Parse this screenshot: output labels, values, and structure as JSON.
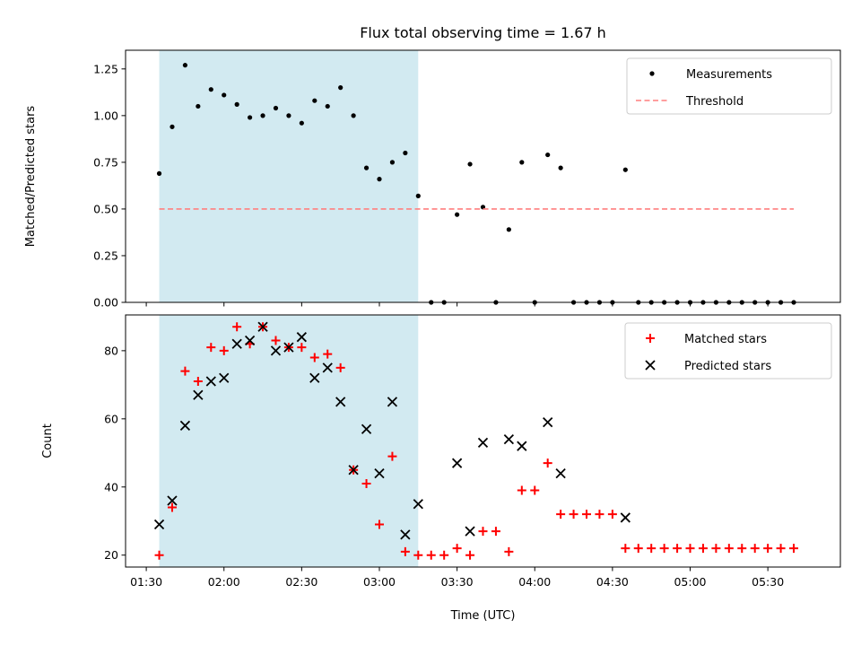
{
  "chart_data": [
    {
      "type": "scatter",
      "title": "Flux total observing time = 1.67 h",
      "xlabel": "",
      "ylabel": "Matched/Predicted stars",
      "x_axis": "time",
      "xlim": [
        "01:22",
        "05:58"
      ],
      "ylim": [
        0,
        1.35
      ],
      "yticks": [
        0.0,
        0.25,
        0.5,
        0.75,
        1.0,
        1.25
      ],
      "ytick_labels": [
        "0.00",
        "0.25",
        "0.50",
        "0.75",
        "1.00",
        "1.25"
      ],
      "grid": false,
      "legend": "top-right",
      "shaded_region": {
        "x": [
          "01:35",
          "03:15"
        ],
        "color": "#add8e6"
      },
      "series": [
        {
          "name": "Measurements",
          "marker": "dot",
          "color": "#000000",
          "points": [
            [
              "01:35",
              0.69
            ],
            [
              "01:40",
              0.94
            ],
            [
              "01:45",
              1.27
            ],
            [
              "01:50",
              1.05
            ],
            [
              "01:55",
              1.14
            ],
            [
              "02:00",
              1.11
            ],
            [
              "02:05",
              1.06
            ],
            [
              "02:10",
              0.99
            ],
            [
              "02:15",
              1.0
            ],
            [
              "02:20",
              1.04
            ],
            [
              "02:25",
              1.0
            ],
            [
              "02:30",
              0.96
            ],
            [
              "02:35",
              1.08
            ],
            [
              "02:40",
              1.05
            ],
            [
              "02:45",
              1.15
            ],
            [
              "02:50",
              1.0
            ],
            [
              "02:55",
              0.72
            ],
            [
              "03:00",
              0.66
            ],
            [
              "03:05",
              0.75
            ],
            [
              "03:10",
              0.8
            ],
            [
              "03:15",
              0.57
            ],
            [
              "03:20",
              0.0
            ],
            [
              "03:25",
              0.0
            ],
            [
              "03:30",
              0.47
            ],
            [
              "03:35",
              0.74
            ],
            [
              "03:40",
              0.51
            ],
            [
              "03:45",
              0.0
            ],
            [
              "03:50",
              0.39
            ],
            [
              "03:55",
              0.75
            ],
            [
              "04:00",
              0.0
            ],
            [
              "04:05",
              0.79
            ],
            [
              "04:10",
              0.72
            ],
            [
              "04:15",
              0.0
            ],
            [
              "04:20",
              0.0
            ],
            [
              "04:25",
              0.0
            ],
            [
              "04:30",
              0.0
            ],
            [
              "04:35",
              0.71
            ],
            [
              "04:40",
              0.0
            ],
            [
              "04:45",
              0.0
            ],
            [
              "04:50",
              0.0
            ],
            [
              "04:55",
              0.0
            ],
            [
              "05:00",
              0.0
            ],
            [
              "05:05",
              0.0
            ],
            [
              "05:10",
              0.0
            ],
            [
              "05:15",
              0.0
            ],
            [
              "05:20",
              0.0
            ],
            [
              "05:25",
              0.0
            ],
            [
              "05:30",
              0.0
            ],
            [
              "05:35",
              0.0
            ],
            [
              "05:40",
              0.0
            ]
          ]
        },
        {
          "name": "Threshold",
          "type": "line",
          "style": "dashed",
          "color": "#ff7f7f",
          "points": [
            [
              "01:35",
              0.5
            ],
            [
              "05:40",
              0.5
            ]
          ]
        }
      ]
    },
    {
      "type": "scatter",
      "title": "",
      "xlabel": "Time (UTC)",
      "ylabel": "Count",
      "x_axis": "time",
      "xlim": [
        "01:22",
        "05:58"
      ],
      "ylim": [
        16.5,
        90.5
      ],
      "yticks": [
        20,
        40,
        60,
        80
      ],
      "ytick_labels": [
        "20",
        "40",
        "60",
        "80"
      ],
      "xtick_labels": [
        "01:30",
        "02:00",
        "02:30",
        "03:00",
        "03:30",
        "04:00",
        "04:30",
        "05:00",
        "05:30"
      ],
      "grid": false,
      "legend": "top-right",
      "shaded_region": {
        "x": [
          "01:35",
          "03:15"
        ],
        "color": "#add8e6"
      },
      "series": [
        {
          "name": "Matched stars",
          "marker": "plus",
          "color": "#ff0000",
          "points": [
            [
              "01:35",
              20
            ],
            [
              "01:40",
              34
            ],
            [
              "01:45",
              74
            ],
            [
              "01:50",
              71
            ],
            [
              "01:55",
              81
            ],
            [
              "02:00",
              80
            ],
            [
              "02:05",
              87
            ],
            [
              "02:10",
              82
            ],
            [
              "02:15",
              87
            ],
            [
              "02:20",
              83
            ],
            [
              "02:25",
              81
            ],
            [
              "02:30",
              81
            ],
            [
              "02:35",
              78
            ],
            [
              "02:40",
              79
            ],
            [
              "02:45",
              75
            ],
            [
              "02:50",
              45
            ],
            [
              "02:55",
              41
            ],
            [
              "03:00",
              29
            ],
            [
              "03:05",
              49
            ],
            [
              "03:10",
              21
            ],
            [
              "03:15",
              20
            ],
            [
              "03:20",
              20
            ],
            [
              "03:25",
              20
            ],
            [
              "03:30",
              22
            ],
            [
              "03:35",
              20
            ],
            [
              "03:40",
              27
            ],
            [
              "03:45",
              27
            ],
            [
              "03:50",
              21
            ],
            [
              "03:55",
              39
            ],
            [
              "04:00",
              39
            ],
            [
              "04:05",
              47
            ],
            [
              "04:10",
              32
            ],
            [
              "04:15",
              32
            ],
            [
              "04:20",
              32
            ],
            [
              "04:25",
              32
            ],
            [
              "04:30",
              32
            ],
            [
              "04:35",
              22
            ],
            [
              "04:40",
              22
            ],
            [
              "04:45",
              22
            ],
            [
              "04:50",
              22
            ],
            [
              "04:55",
              22
            ],
            [
              "05:00",
              22
            ],
            [
              "05:05",
              22
            ],
            [
              "05:10",
              22
            ],
            [
              "05:15",
              22
            ],
            [
              "05:20",
              22
            ],
            [
              "05:25",
              22
            ],
            [
              "05:30",
              22
            ],
            [
              "05:35",
              22
            ],
            [
              "05:40",
              22
            ]
          ]
        },
        {
          "name": "Predicted stars",
          "marker": "x",
          "color": "#000000",
          "points": [
            [
              "01:35",
              29
            ],
            [
              "01:40",
              36
            ],
            [
              "01:45",
              58
            ],
            [
              "01:50",
              67
            ],
            [
              "01:55",
              71
            ],
            [
              "02:00",
              72
            ],
            [
              "02:05",
              82
            ],
            [
              "02:10",
              83
            ],
            [
              "02:15",
              87
            ],
            [
              "02:20",
              80
            ],
            [
              "02:25",
              81
            ],
            [
              "02:30",
              84
            ],
            [
              "02:35",
              72
            ],
            [
              "02:40",
              75
            ],
            [
              "02:45",
              65
            ],
            [
              "02:50",
              45
            ],
            [
              "02:55",
              57
            ],
            [
              "03:00",
              44
            ],
            [
              "03:05",
              65
            ],
            [
              "03:10",
              26
            ],
            [
              "03:15",
              35
            ],
            [
              "03:30",
              47
            ],
            [
              "03:35",
              27
            ],
            [
              "03:40",
              53
            ],
            [
              "03:50",
              54
            ],
            [
              "03:55",
              52
            ],
            [
              "04:05",
              59
            ],
            [
              "04:10",
              44
            ],
            [
              "04:35",
              31
            ]
          ]
        }
      ]
    }
  ]
}
